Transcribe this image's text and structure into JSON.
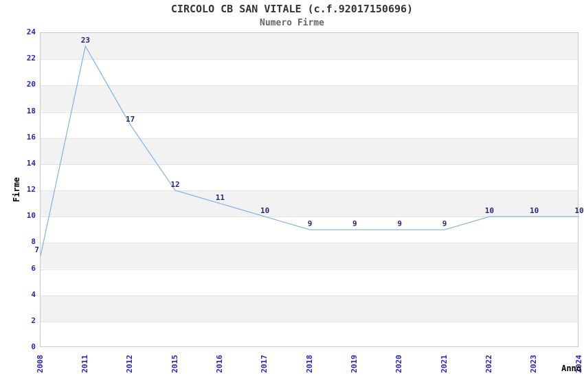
{
  "header": {
    "title": "CIRCOLO CB SAN VITALE (c.f.92017150696)",
    "subtitle": "Numero Firme"
  },
  "chart_data": {
    "type": "line",
    "title": "CIRCOLO CB SAN VITALE (c.f.92017150696)",
    "subtitle": "Numero Firme",
    "categories": [
      "2008",
      "2011",
      "2012",
      "2015",
      "2016",
      "2017",
      "2018",
      "2019",
      "2020",
      "2021",
      "2022",
      "2023",
      "2024"
    ],
    "values": [
      7,
      23,
      17,
      12,
      11,
      10,
      9,
      9,
      9,
      9,
      10,
      10,
      10
    ],
    "xlabel": "Anno",
    "ylabel": "Firme",
    "ylim": [
      0,
      24
    ],
    "ytick_step": 2,
    "grid": "horizontal-bands-alternating",
    "legend_position": "none",
    "data_labels": true,
    "colors": {
      "line": "#7fb2e6",
      "data_label": "#26267a",
      "tick_label": "#2424cc",
      "band_fill": "#f2f2f2",
      "grid_line": "#e2e2e2",
      "plot_border": "#c9c9c9",
      "title": "#333333",
      "subtitle": "#666666",
      "axis_title": "#000000",
      "background": "#ffffff"
    }
  }
}
